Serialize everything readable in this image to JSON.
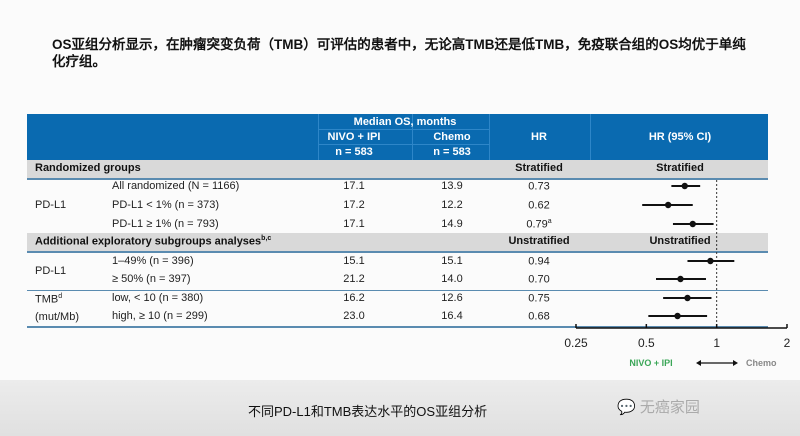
{
  "title": "OS亚组分析显示，在肿瘤突变负荷（TMB）可评估的患者中，无论高TMB还是低TMB，免疫联合组的OS均优于单纯化疗组。",
  "table": {
    "header": {
      "median_os": "Median OS, months",
      "nivo_ipi": "NIVO + IPI",
      "nivo_n": "n = 583",
      "chemo": "Chemo",
      "chemo_n": "n = 583",
      "hr": "HR",
      "hr_ci": "HR (95% CI)"
    },
    "section1": {
      "label": "Randomized groups",
      "hr_type": "Stratified",
      "plot_type": "Stratified"
    },
    "section2": {
      "label": "Additional exploratory subgroups analyses",
      "sup": "b,c",
      "hr_type": "Unstratified",
      "plot_type": "Unstratified"
    },
    "groups": {
      "pdl1_a": "PD-L1",
      "pdl1_b": "PD-L1",
      "tmb": "TMB",
      "tmb_sup": "d",
      "tmb_unit": "(mut/Mb)"
    },
    "rows": [
      {
        "label": "All randomized (N = 1166)",
        "nivo": "17.1",
        "chemo": "13.9",
        "hr": "0.73",
        "sup": ""
      },
      {
        "label": "PD-L1 < 1% (n = 373)",
        "nivo": "17.2",
        "chemo": "12.2",
        "hr": "0.62",
        "sup": ""
      },
      {
        "label": "PD-L1 ≥ 1% (n = 793)",
        "nivo": "17.1",
        "chemo": "14.9",
        "hr": "0.79",
        "sup": "a"
      },
      {
        "label": "1–49% (n = 396)",
        "nivo": "15.1",
        "chemo": "15.1",
        "hr": "0.94",
        "sup": ""
      },
      {
        "label": "≥ 50% (n = 397)",
        "nivo": "21.2",
        "chemo": "14.0",
        "hr": "0.70",
        "sup": ""
      },
      {
        "label": "low, < 10 (n = 380)",
        "nivo": "16.2",
        "chemo": "12.6",
        "hr": "0.75",
        "sup": ""
      },
      {
        "label": "high, ≥ 10 (n = 299)",
        "nivo": "23.0",
        "chemo": "16.4",
        "hr": "0.68",
        "sup": ""
      }
    ]
  },
  "chart_data": {
    "type": "forest",
    "x_scale": "log",
    "xlim": [
      0.25,
      2
    ],
    "x_ticks": [
      "0.25",
      "0.5",
      "1",
      "2"
    ],
    "reference_line": 1,
    "legend_left": "NIVO + IPI",
    "legend_right": "Chemo",
    "colors": {
      "left": "#3aa657",
      "right": "#888888",
      "marker": "#111111"
    },
    "points": [
      {
        "hr": 0.73,
        "lo": 0.64,
        "hi": 0.85
      },
      {
        "hr": 0.62,
        "lo": 0.48,
        "hi": 0.79
      },
      {
        "hr": 0.79,
        "lo": 0.65,
        "hi": 0.97
      },
      {
        "hr": 0.94,
        "lo": 0.75,
        "hi": 1.19
      },
      {
        "hr": 0.7,
        "lo": 0.55,
        "hi": 0.9
      },
      {
        "hr": 0.75,
        "lo": 0.59,
        "hi": 0.95
      },
      {
        "hr": 0.68,
        "lo": 0.51,
        "hi": 0.91
      }
    ]
  },
  "caption": "不同PD-L1和TMB表达水平的OS亚组分析",
  "watermark": "无癌家园"
}
